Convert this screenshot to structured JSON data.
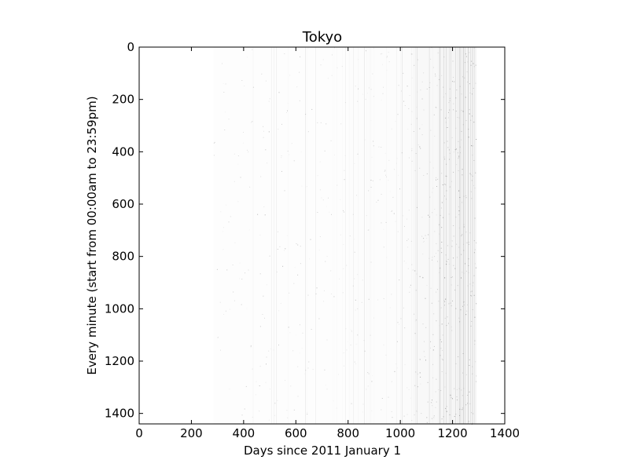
{
  "chart_data": {
    "type": "heatmap",
    "title": "Tokyo",
    "xlabel": "Days since 2011 January 1",
    "ylabel": "Every minute (start from 00:00am to 23:59pm)",
    "xlim": [
      0,
      1400
    ],
    "ylim": [
      1440,
      0
    ],
    "y_inverted": true,
    "x_ticks": [
      0,
      200,
      400,
      600,
      800,
      1000,
      1200,
      1400
    ],
    "y_ticks": [
      0,
      200,
      400,
      600,
      800,
      1000,
      1200,
      1400
    ],
    "x_tick_labels": [
      "0",
      "200",
      "400",
      "600",
      "800",
      "1000",
      "1200",
      "1400"
    ],
    "y_tick_labels": [
      "0",
      "200",
      "400",
      "600",
      "800",
      "1000",
      "1200",
      "1400"
    ],
    "grid": false,
    "colormap": "greys",
    "data_extent": {
      "x_start": 285,
      "x_end": 1290,
      "y_start": 0,
      "y_end": 1440
    },
    "density_profile": [
      {
        "x_from": 285,
        "x_to": 400,
        "intensity": 0.05
      },
      {
        "x_from": 400,
        "x_to": 600,
        "intensity": 0.06
      },
      {
        "x_from": 600,
        "x_to": 800,
        "intensity": 0.06
      },
      {
        "x_from": 800,
        "x_to": 1000,
        "intensity": 0.08
      },
      {
        "x_from": 1000,
        "x_to": 1050,
        "intensity": 0.11
      },
      {
        "x_from": 1050,
        "x_to": 1150,
        "intensity": 0.17
      },
      {
        "x_from": 1150,
        "x_to": 1290,
        "intensity": 0.26
      }
    ]
  }
}
